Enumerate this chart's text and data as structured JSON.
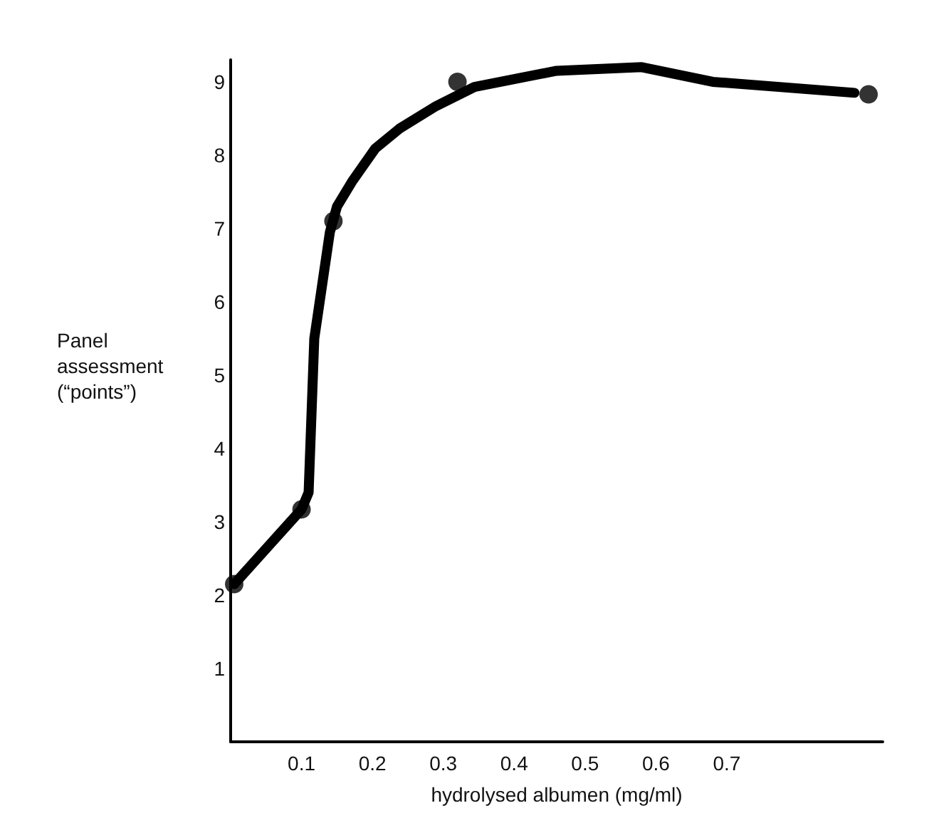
{
  "chart_data": {
    "type": "line",
    "xlabel": "hydrolysed albumen (mg/ml)",
    "ylabel": "Panel assessment (“points”)",
    "xlim": [
      0,
      0.92
    ],
    "xticks": [
      0.1,
      0.2,
      0.3,
      0.4,
      0.5,
      0.6,
      0.7
    ],
    "ylim": [
      0,
      9.3
    ],
    "yticks": [
      1,
      2,
      3,
      4,
      5,
      6,
      7,
      8,
      9
    ],
    "grid": false,
    "series": [
      {
        "color": "#000000",
        "marker": "none",
        "line_style": "solid",
        "x": [
          0.005,
          0.1,
          0.11,
          0.118,
          0.14,
          0.15,
          0.172,
          0.204,
          0.238,
          0.29,
          0.344,
          0.46,
          0.58,
          0.68,
          0.88
        ],
        "values": [
          2.15,
          3.17,
          3.4,
          5.5,
          6.95,
          7.3,
          7.65,
          8.09,
          8.36,
          8.67,
          8.93,
          9.15,
          9.2,
          9.0,
          8.85
        ]
      },
      {
        "type": "scatter",
        "color": "#000000",
        "marker": "circle",
        "x": [
          0.005,
          0.1,
          0.145,
          0.32,
          0.9
        ],
        "values": [
          2.15,
          3.17,
          7.1,
          9.0,
          8.83
        ]
      }
    ]
  }
}
